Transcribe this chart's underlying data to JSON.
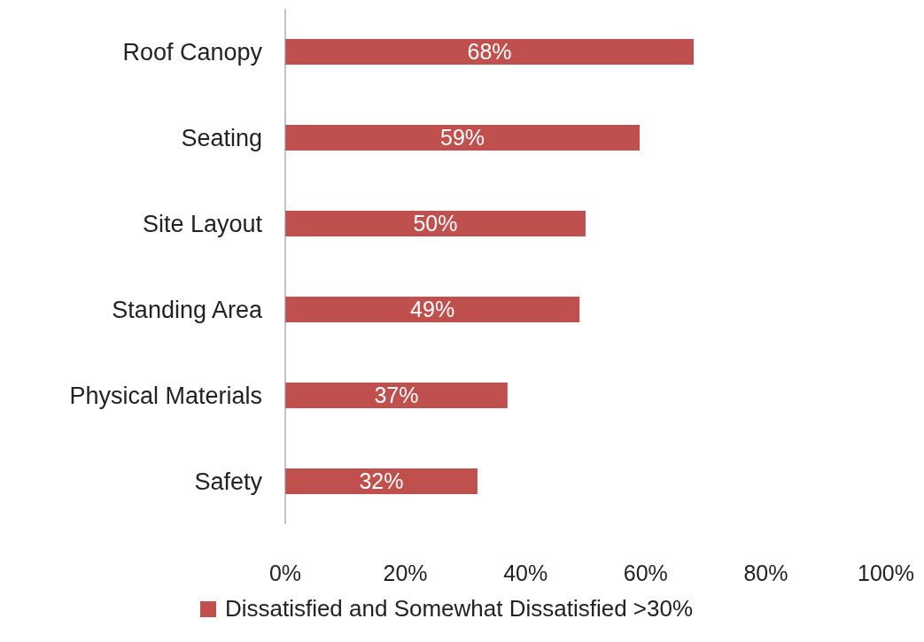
{
  "chart_data": {
    "type": "bar",
    "orientation": "horizontal",
    "categories": [
      "Roof Canopy",
      "Seating",
      "Site Layout",
      "Standing Area",
      "Physical Materials",
      "Safety"
    ],
    "series": [
      {
        "name": "Dissatisfied and Somewhat Dissatisfied >30%",
        "color": "#c0504d",
        "values": [
          68,
          59,
          50,
          49,
          37,
          32
        ],
        "value_labels": [
          "68%",
          "59%",
          "50%",
          "49%",
          "37%",
          "32%"
        ]
      }
    ],
    "xlim": [
      0,
      100
    ],
    "xticks": [
      {
        "value": 0,
        "label": "0%"
      },
      {
        "value": 20,
        "label": "20%"
      },
      {
        "value": 40,
        "label": "40%"
      },
      {
        "value": 60,
        "label": "60%"
      },
      {
        "value": 80,
        "label": "80%"
      },
      {
        "value": 100,
        "label": "100%"
      }
    ],
    "grid": false,
    "legend": "bottom"
  }
}
